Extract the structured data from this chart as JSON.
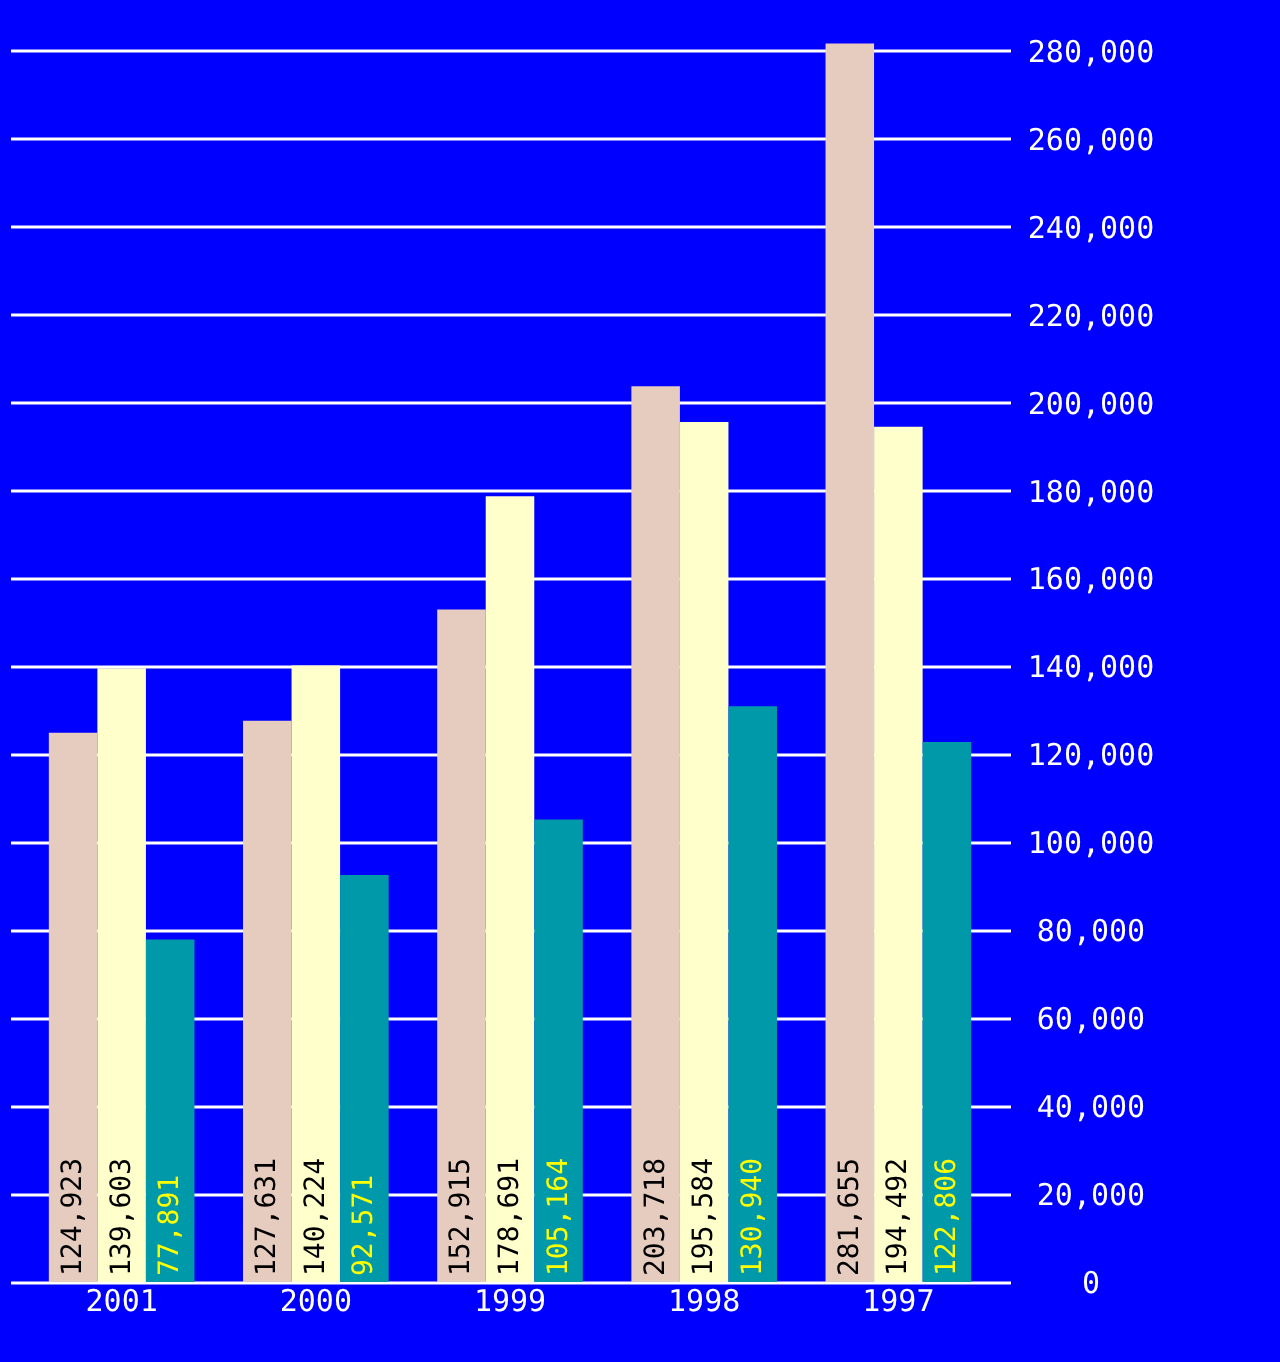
{
  "chart_data": {
    "type": "bar",
    "categories": [
      "2001",
      "2000",
      "1999",
      "1998",
      "1997"
    ],
    "series": [
      {
        "color": "#e6cbbf",
        "values": [
          124923,
          127631,
          152915,
          203718,
          281655
        ],
        "value_labels": [
          "124,923",
          "127,631",
          "152,915",
          "203,718",
          "281,655"
        ]
      },
      {
        "color": "#ffffcc",
        "values": [
          139603,
          140224,
          178691,
          195584,
          194492
        ],
        "value_labels": [
          "139,603",
          "140,224",
          "178,691",
          "195,584",
          "194,492"
        ]
      },
      {
        "color": "#0099aa",
        "values": [
          77891,
          92571,
          105164,
          130940,
          122806
        ],
        "value_labels": [
          "77,891",
          "92,571",
          "105,164",
          "130,940",
          "122,806"
        ]
      }
    ],
    "ylim": [
      0,
      282000
    ],
    "yticks": [
      0,
      {
        "value": 20000,
        "label": "20,000"
      },
      {
        "value": 40000,
        "label": "40,000"
      },
      {
        "value": 60000,
        "label": "60,000"
      },
      {
        "value": 80000,
        "label": "80,000"
      },
      {
        "value": 100000,
        "label": "100,000"
      },
      {
        "value": 120000,
        "label": "120,000"
      },
      {
        "value": 140000,
        "label": "140,000"
      },
      {
        "value": 160000,
        "label": "160,000"
      },
      {
        "value": 180000,
        "label": "180,000"
      },
      {
        "value": 200000,
        "label": "200,000"
      },
      {
        "value": 220000,
        "label": "220,000"
      },
      {
        "value": 240000,
        "label": "240,000"
      },
      {
        "value": 260000,
        "label": "260,000"
      },
      {
        "value": 280000,
        "label": "280,000"
      }
    ],
    "grid": "y",
    "legend": false
  }
}
